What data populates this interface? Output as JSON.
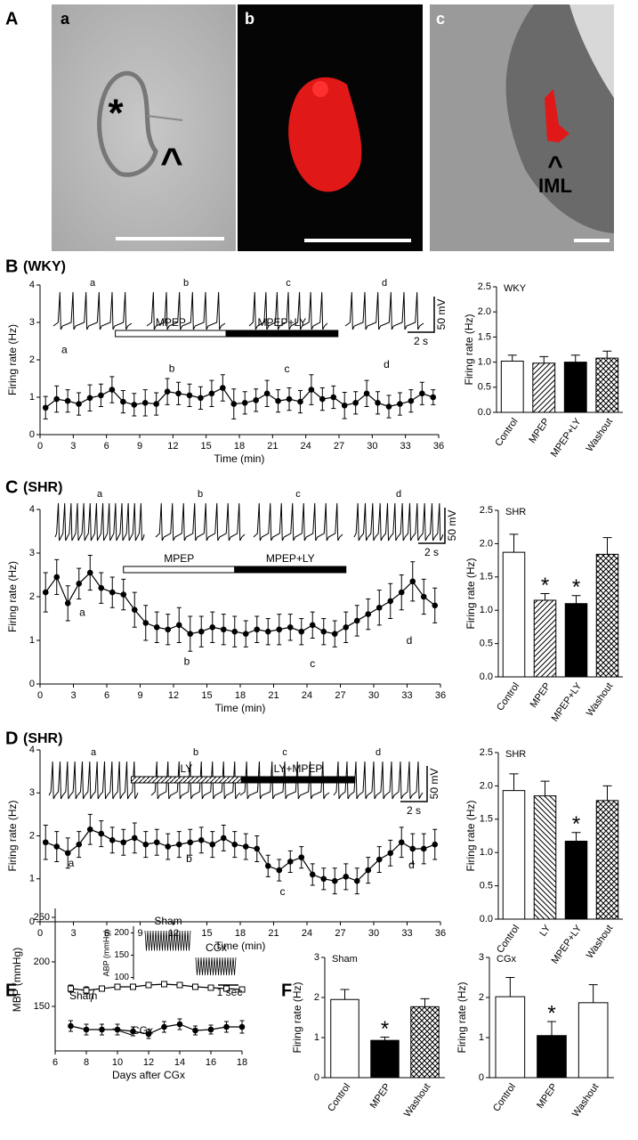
{
  "figure": {
    "panel_labels": [
      "A",
      "B",
      "C",
      "D",
      "E",
      "F"
    ],
    "subpanel_labels": [
      "a",
      "b",
      "c"
    ],
    "image_labels": {
      "asterisk": "*",
      "caret_a": "^",
      "caret_c": "^",
      "iml": "IML"
    },
    "strain_labels": [
      "(WKY)",
      "(SHR)",
      "(SHR)"
    ]
  },
  "chart_data": [
    {
      "type": "line",
      "xlabel": "Time (min)",
      "ylabel": "Firing rate (Hz)",
      "color": "#000000",
      "x": [
        0.5,
        1.5,
        2.5,
        3.5,
        4.5,
        5.5,
        6.5,
        7.5,
        8.5,
        9.5,
        10.5,
        11.5,
        12.5,
        13.5,
        14.5,
        15.5,
        16.5,
        17.5,
        18.5,
        19.5,
        20.5,
        21.5,
        22.5,
        23.5,
        24.5,
        25.5,
        26.5,
        27.5,
        28.5,
        29.5,
        30.5,
        31.5,
        32.5,
        33.5,
        34.5,
        35.5
      ],
      "values": [
        0.72,
        0.95,
        0.9,
        0.82,
        0.98,
        1.05,
        1.2,
        0.88,
        0.8,
        0.85,
        0.82,
        1.15,
        1.1,
        1.05,
        0.98,
        1.1,
        1.25,
        0.82,
        0.85,
        0.92,
        1.1,
        0.9,
        0.95,
        0.88,
        1.2,
        0.95,
        1.0,
        0.78,
        0.85,
        1.1,
        0.85,
        0.75,
        0.82,
        0.9,
        1.1,
        1.0
      ],
      "errors": [
        0.3,
        0.35,
        0.3,
        0.3,
        0.35,
        0.3,
        0.35,
        0.3,
        0.3,
        0.35,
        0.3,
        0.35,
        0.3,
        0.3,
        0.3,
        0.35,
        0.35,
        0.4,
        0.3,
        0.3,
        0.35,
        0.3,
        0.3,
        0.3,
        0.4,
        0.3,
        0.3,
        0.35,
        0.3,
        0.35,
        0.3,
        0.3,
        0.3,
        0.3,
        0.3,
        0.2
      ],
      "xlim": [
        0,
        36
      ],
      "ylim": [
        0,
        4
      ],
      "xticks": [
        0,
        3,
        6,
        9,
        12,
        15,
        18,
        21,
        24,
        27,
        30,
        33,
        36
      ],
      "yticks": [
        0,
        1,
        2,
        3,
        4
      ],
      "trace_labels": [
        "a",
        "b",
        "c",
        "d"
      ],
      "scale_labels": [
        "50 mV",
        "2 s"
      ],
      "treatments": [
        {
          "label": "MPEP",
          "start": 6.8,
          "end": 16.8,
          "style": "open"
        },
        {
          "label": "MPEP+LY",
          "start": 16.8,
          "end": 26.9,
          "style": "solid"
        }
      ],
      "annotations": [
        {
          "text": "a",
          "x": 2.2,
          "y": 2.26
        },
        {
          "text": "b",
          "x": 11.9,
          "y": 1.76
        },
        {
          "text": "c",
          "x": 22.3,
          "y": 1.74
        },
        {
          "text": "d",
          "x": 31.3,
          "y": 1.86
        }
      ]
    },
    {
      "type": "bar",
      "title": "WKY",
      "ylabel": "Firing rate (Hz)",
      "categories": [
        "Control",
        "MPEP",
        "MPEP+LY",
        "Washout"
      ],
      "values": [
        1.02,
        0.98,
        1.0,
        1.08
      ],
      "errors": [
        0.12,
        0.13,
        0.14,
        0.14
      ],
      "patterns": [
        "none",
        "diagonal",
        "solid",
        "crosshatch"
      ],
      "stars": [
        null,
        null,
        null,
        null
      ],
      "ylim": [
        0,
        2.5
      ],
      "yticks": [
        {
          "value": 0,
          "label": "0.0"
        },
        {
          "value": 0.5,
          "label": "0.5"
        },
        {
          "value": 1,
          "label": "1.0"
        },
        {
          "value": 1.5,
          "label": "1.5"
        },
        {
          "value": 2,
          "label": "2.0"
        },
        {
          "value": 2.5,
          "label": "2.5"
        }
      ]
    },
    {
      "type": "line",
      "xlabel": "Time (min)",
      "ylabel": "Firing rate (Hz)",
      "color": "#000000",
      "x": [
        0.5,
        1.5,
        2.5,
        3.5,
        4.5,
        5.5,
        6.5,
        7.5,
        8.5,
        9.5,
        10.5,
        11.5,
        12.5,
        13.5,
        14.5,
        15.5,
        16.5,
        17.5,
        18.5,
        19.5,
        20.5,
        21.5,
        22.5,
        23.5,
        24.5,
        25.5,
        26.5,
        27.5,
        28.5,
        29.5,
        30.5,
        31.5,
        32.5,
        33.5,
        34.5,
        35.5
      ],
      "values": [
        2.1,
        2.45,
        1.85,
        2.3,
        2.55,
        2.2,
        2.1,
        2.05,
        1.7,
        1.4,
        1.3,
        1.25,
        1.35,
        1.15,
        1.2,
        1.3,
        1.25,
        1.2,
        1.15,
        1.25,
        1.2,
        1.25,
        1.3,
        1.2,
        1.35,
        1.2,
        1.15,
        1.3,
        1.45,
        1.6,
        1.75,
        1.9,
        2.1,
        2.35,
        2.0,
        1.8
      ],
      "errors": [
        0.45,
        0.4,
        0.4,
        0.35,
        0.4,
        0.35,
        0.35,
        0.35,
        0.4,
        0.4,
        0.35,
        0.35,
        0.4,
        0.4,
        0.35,
        0.35,
        0.35,
        0.35,
        0.3,
        0.3,
        0.3,
        0.35,
        0.3,
        0.3,
        0.3,
        0.3,
        0.3,
        0.35,
        0.35,
        0.35,
        0.4,
        0.4,
        0.4,
        0.45,
        0.4,
        0.4
      ],
      "xlim": [
        0,
        36
      ],
      "ylim": [
        0,
        4
      ],
      "xticks": [
        0,
        3,
        6,
        9,
        12,
        15,
        18,
        21,
        24,
        27,
        30,
        33,
        36
      ],
      "yticks": [
        0,
        1,
        2,
        3,
        4
      ],
      "trace_labels": [
        "a",
        "b",
        "c",
        "d"
      ],
      "scale_labels": [
        "50 mV",
        "2 s"
      ],
      "treatments": [
        {
          "label": "MPEP",
          "start": 7.5,
          "end": 17.5,
          "style": "open"
        },
        {
          "label": "MPEP+LY",
          "start": 17.5,
          "end": 27.5,
          "style": "solid"
        }
      ],
      "annotations": [
        {
          "text": "a",
          "x": 3.8,
          "y": 1.63
        },
        {
          "text": "b",
          "x": 13.2,
          "y": 0.5
        },
        {
          "text": "c",
          "x": 24.5,
          "y": 0.45
        },
        {
          "text": "d",
          "x": 33.2,
          "y": 0.98
        }
      ]
    },
    {
      "type": "bar",
      "title": "SHR",
      "ylabel": "Firing rate (Hz)",
      "categories": [
        "Control",
        "MPEP",
        "MPEP+LY",
        "Washout"
      ],
      "values": [
        1.87,
        1.15,
        1.1,
        1.84
      ],
      "errors": [
        0.27,
        0.1,
        0.12,
        0.25
      ],
      "patterns": [
        "none",
        "diagonal",
        "solid",
        "crosshatch"
      ],
      "stars": [
        null,
        "*",
        "*",
        null
      ],
      "ylim": [
        0,
        2.5
      ],
      "yticks": [
        {
          "value": 0,
          "label": "0.0"
        },
        {
          "value": 0.5,
          "label": "0.5"
        },
        {
          "value": 1,
          "label": "1.0"
        },
        {
          "value": 1.5,
          "label": "1.5"
        },
        {
          "value": 2,
          "label": "2.0"
        },
        {
          "value": 2.5,
          "label": "2.5"
        }
      ]
    },
    {
      "type": "line",
      "xlabel": "Time (min)",
      "ylabel": "Firing rate (Hz)",
      "color": "#000000",
      "x": [
        0.5,
        1.5,
        2.5,
        3.5,
        4.5,
        5.5,
        6.5,
        7.5,
        8.5,
        9.5,
        10.5,
        11.5,
        12.5,
        13.5,
        14.5,
        15.5,
        16.5,
        17.5,
        18.5,
        19.5,
        20.5,
        21.5,
        22.5,
        23.5,
        24.5,
        25.5,
        26.5,
        27.5,
        28.5,
        29.5,
        30.5,
        31.5,
        32.5,
        33.5,
        34.5,
        35.5
      ],
      "values": [
        1.85,
        1.75,
        1.6,
        1.8,
        2.15,
        2.05,
        1.9,
        1.85,
        1.95,
        1.8,
        1.85,
        1.75,
        1.8,
        1.85,
        1.9,
        1.8,
        1.95,
        1.8,
        1.75,
        1.7,
        1.3,
        1.2,
        1.4,
        1.5,
        1.1,
        1.0,
        0.95,
        1.05,
        0.95,
        1.2,
        1.45,
        1.6,
        1.85,
        1.7,
        1.7,
        1.8
      ],
      "errors": [
        0.4,
        0.35,
        0.35,
        0.3,
        0.35,
        0.3,
        0.3,
        0.3,
        0.35,
        0.3,
        0.3,
        0.3,
        0.3,
        0.3,
        0.3,
        0.3,
        0.3,
        0.3,
        0.3,
        0.3,
        0.25,
        0.25,
        0.25,
        0.25,
        0.25,
        0.25,
        0.3,
        0.3,
        0.3,
        0.3,
        0.3,
        0.3,
        0.35,
        0.35,
        0.35,
        0.35
      ],
      "xlim": [
        0,
        36
      ],
      "ylim": [
        0,
        4
      ],
      "xticks": [
        0,
        3,
        6,
        9,
        12,
        15,
        18,
        21,
        24,
        27,
        30,
        33,
        36
      ],
      "yticks": [
        0,
        1,
        2,
        3,
        4
      ],
      "trace_labels": [
        "a",
        "b",
        "c",
        "d"
      ],
      "scale_labels": [
        "50 mV",
        "2 s"
      ],
      "treatments": [
        {
          "label": "LY",
          "start": 8.2,
          "end": 18.1,
          "style": "hatched"
        },
        {
          "label": "LY+MPEP",
          "start": 18.1,
          "end": 28.3,
          "style": "solid"
        }
      ],
      "annotations": [
        {
          "text": "a",
          "x": 2.8,
          "y": 1.35
        },
        {
          "text": "b",
          "x": 13.4,
          "y": 1.45
        },
        {
          "text": "c",
          "x": 21.8,
          "y": 0.69
        },
        {
          "text": "d",
          "x": 33.4,
          "y": 1.31
        }
      ]
    },
    {
      "type": "bar",
      "title": "SHR",
      "ylabel": "Firing rate (Hz)",
      "categories": [
        "Control",
        "LY",
        "MPEP+LY",
        "Washout"
      ],
      "values": [
        1.93,
        1.85,
        1.17,
        1.78
      ],
      "errors": [
        0.25,
        0.22,
        0.13,
        0.22
      ],
      "patterns": [
        "none",
        "backdiagonal",
        "solid",
        "crosshatch"
      ],
      "stars": [
        null,
        null,
        "*",
        null
      ],
      "ylim": [
        0,
        2.5
      ],
      "yticks": [
        {
          "value": 0,
          "label": "0.0"
        },
        {
          "value": 0.5,
          "label": "0.5"
        },
        {
          "value": 1,
          "label": "1.0"
        },
        {
          "value": 1.5,
          "label": "1.5"
        },
        {
          "value": 2,
          "label": "2.0"
        },
        {
          "value": 2.5,
          "label": "2.5"
        }
      ]
    },
    {
      "type": "line",
      "xlabel": "Days after CGx",
      "ylabel": "MBP (mmHg)",
      "color": "#000000",
      "x": [
        7,
        8,
        9,
        10,
        11,
        12,
        13,
        14,
        15,
        16,
        17,
        18
      ],
      "series": [
        {
          "name": "Sham",
          "marker": "open-square",
          "values": [
            170,
            168,
            170,
            172,
            172,
            174,
            175,
            174,
            172,
            171,
            170,
            169
          ],
          "errors": [
            4,
            4,
            3,
            3,
            3,
            3,
            3,
            3,
            3,
            3,
            3,
            3
          ]
        },
        {
          "name": "CGx",
          "marker": "filled-circle",
          "values": [
            128,
            124,
            124,
            124,
            122,
            119,
            127,
            130,
            123,
            124,
            127,
            127
          ],
          "errors": [
            6,
            6,
            6,
            6,
            5,
            5,
            6,
            6,
            5,
            5,
            6,
            7
          ]
        }
      ],
      "xlim": [
        6,
        18
      ],
      "ylim": [
        100,
        260
      ],
      "xticks": [
        6,
        8,
        10,
        12,
        14,
        16,
        18
      ],
      "yticks": [
        150,
        200,
        250
      ],
      "inset": {
        "ylabel": "ABP (mmHg)",
        "ylim": [
          95,
          215
        ],
        "yticks": [
          100,
          150,
          200
        ],
        "traces": [
          {
            "name": "Sham",
            "range": [
              160,
              205
            ]
          },
          {
            "name": "CGx",
            "range": [
              105,
              145
            ]
          }
        ],
        "scale_label": "1 sec"
      }
    },
    {
      "type": "bar",
      "title": "Sham",
      "ylabel": "Firing rate (Hz)",
      "categories": [
        "Control",
        "MPEP",
        "Washout"
      ],
      "values": [
        1.95,
        0.93,
        1.77
      ],
      "errors": [
        0.25,
        0.08,
        0.2
      ],
      "patterns": [
        "none",
        "solid",
        "crosshatch"
      ],
      "stars": [
        null,
        "*",
        null
      ],
      "ylim": [
        0,
        3
      ],
      "yticks": [
        0,
        1,
        2,
        3
      ]
    },
    {
      "type": "bar",
      "title": "CGx",
      "ylabel": "Firing rate (Hz)",
      "categories": [
        "Control",
        "MPEP",
        "Washout"
      ],
      "values": [
        2.02,
        1.05,
        1.87
      ],
      "errors": [
        0.48,
        0.35,
        0.45
      ],
      "patterns": [
        "none",
        "solid",
        "none"
      ],
      "stars": [
        null,
        "*",
        null
      ],
      "ylim": [
        0,
        3
      ],
      "yticks": [
        0,
        1,
        2,
        3
      ]
    }
  ]
}
